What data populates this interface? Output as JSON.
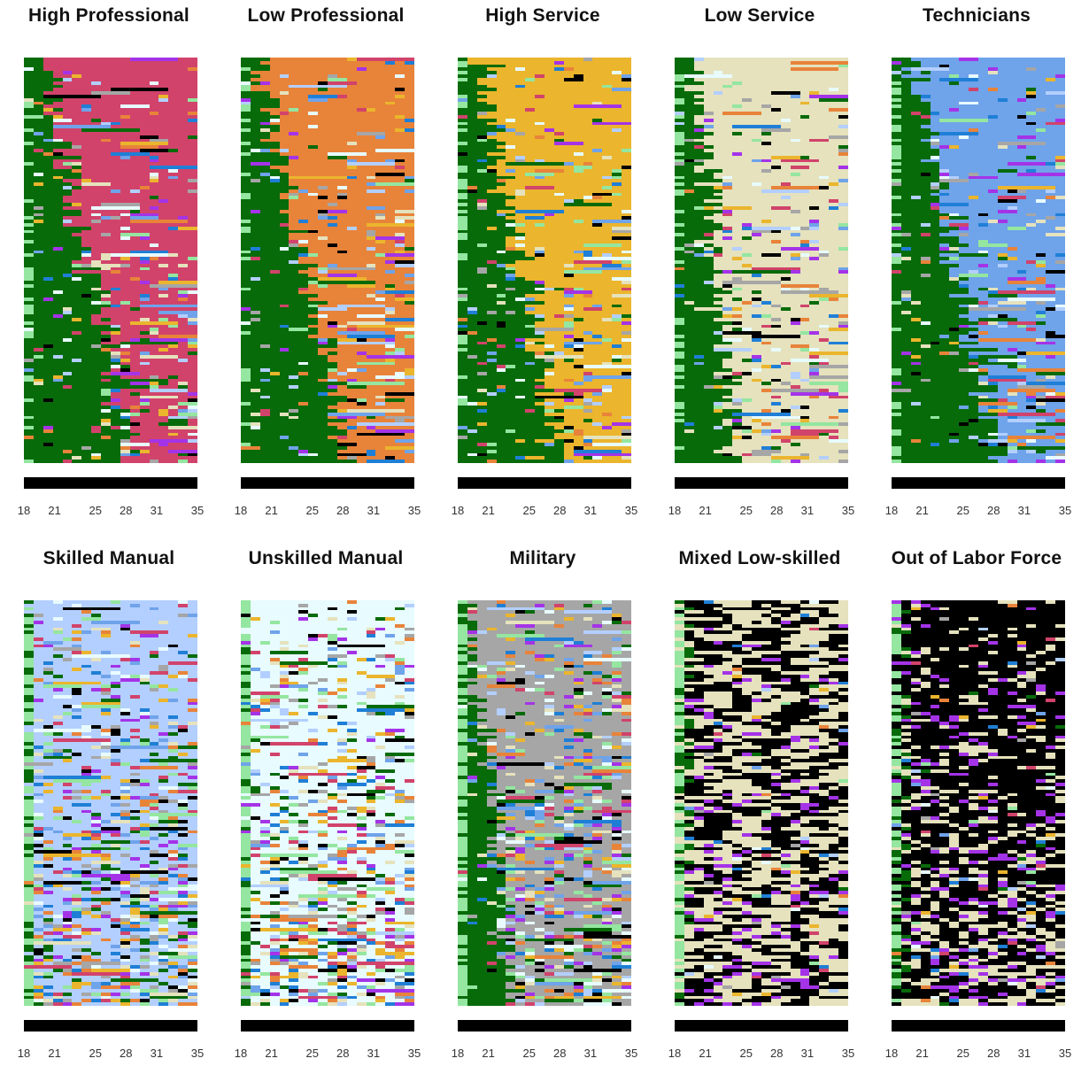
{
  "chart_data": {
    "type": "heatmap",
    "x_ticks": [
      "18",
      "21",
      "25",
      "28",
      "31",
      "35"
    ],
    "x_range": [
      18,
      35
    ],
    "states": [
      {
        "key": "HP",
        "color": "#d1436b"
      },
      {
        "key": "LP",
        "color": "#e8833a"
      },
      {
        "key": "HS",
        "color": "#ebb52d"
      },
      {
        "key": "LS",
        "color": "#e5e2bd"
      },
      {
        "key": "TE",
        "color": "#6fa3ea"
      },
      {
        "key": "SM",
        "color": "#b3cfff"
      },
      {
        "key": "UM",
        "color": "#e8fbff"
      },
      {
        "key": "MI",
        "color": "#a6a6a6"
      },
      {
        "key": "OLF",
        "color": "#000000"
      },
      {
        "key": "EDU",
        "color": "#086b0a"
      },
      {
        "key": "ENTRY",
        "color": "#94e6a0"
      },
      {
        "key": "PURPLE",
        "color": "#a433e8"
      },
      {
        "key": "BLUE",
        "color": "#1f7fd6"
      }
    ],
    "panels": [
      {
        "title": "High Professional",
        "dominant": "HP"
      },
      {
        "title": "Low Professional",
        "dominant": "LP"
      },
      {
        "title": "High Service",
        "dominant": "HS"
      },
      {
        "title": "Low Service",
        "dominant": "LS"
      },
      {
        "title": "Technicians",
        "dominant": "TE"
      },
      {
        "title": "Skilled Manual",
        "dominant": "SM"
      },
      {
        "title": "Unskilled Manual",
        "dominant": "UM"
      },
      {
        "title": "Military",
        "dominant": "MI"
      },
      {
        "title": "Mixed Low-skilled",
        "dominant": "LS"
      },
      {
        "title": "Out of Labor Force",
        "dominant": "OLF"
      }
    ]
  }
}
